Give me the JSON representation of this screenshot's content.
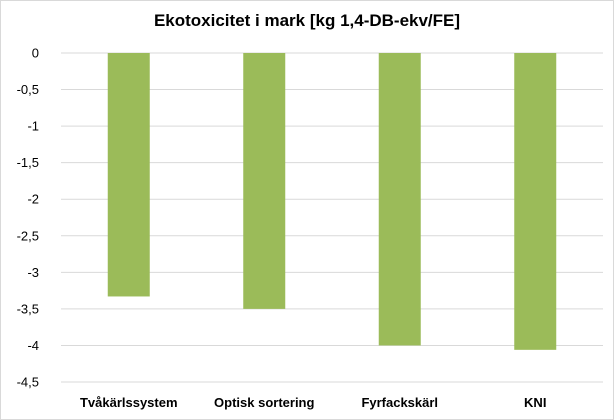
{
  "chart_data": {
    "type": "bar",
    "title": "Ekotoxicitet i mark [kg 1,4-DB-ekv/FE]",
    "categories": [
      "Tvåkärlssystem",
      "Optisk sortering",
      "Fyrfackskärl",
      "KNI"
    ],
    "values": [
      -3.33,
      -3.5,
      -4.0,
      -4.06
    ],
    "ylim": [
      -4.5,
      0
    ],
    "yticks": [
      0,
      -0.5,
      -1,
      -1.5,
      -2,
      -2.5,
      -3,
      -3.5,
      -4,
      -4.5
    ],
    "ytick_labels": [
      "0",
      "-0,5",
      "-1",
      "-1,5",
      "-2",
      "-2,5",
      "-3",
      "-3,5",
      "-4",
      "-4,5"
    ],
    "xlabel": "",
    "ylabel": "",
    "grid": true,
    "legend": "none",
    "bar_color": "#9bbb59",
    "grid_color": "#d9d9d9"
  }
}
